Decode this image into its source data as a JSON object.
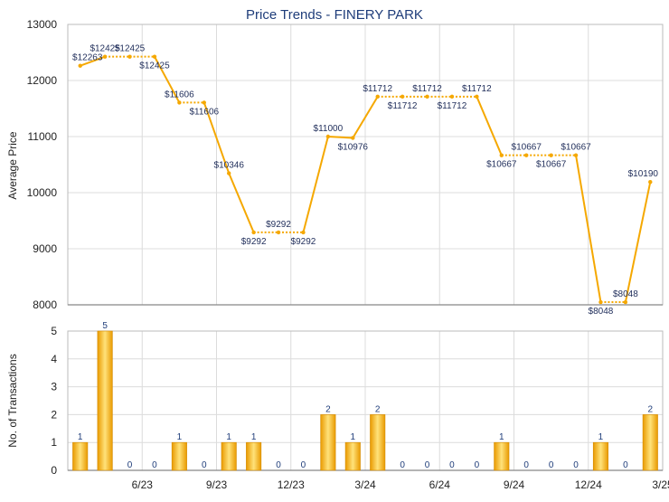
{
  "chart_data": [
    {
      "type": "line",
      "title": "Price Trends - FINERY PARK",
      "xlabel": "",
      "ylabel": "Average Price",
      "ylim": [
        8000,
        13000
      ],
      "yticks": [
        "8000",
        "9000",
        "10000",
        "11000",
        "12000",
        "13000"
      ],
      "grid": true,
      "color": "#f5a800",
      "points": [
        {
          "label": "$12263",
          "y": 12263
        },
        {
          "label": "$12425",
          "y": 12425
        },
        {
          "label": "$12425",
          "y": 12425
        },
        {
          "label": "$12425",
          "y": 12425
        },
        {
          "label": "$11606",
          "y": 11606
        },
        {
          "label": "$11606",
          "y": 11606
        },
        {
          "label": "$10346",
          "y": 10346
        },
        {
          "label": "$9292",
          "y": 9292
        },
        {
          "label": "$9292",
          "y": 9292
        },
        {
          "label": "$9292",
          "y": 9292
        },
        {
          "label": "$11000",
          "y": 11000
        },
        {
          "label": "$10976",
          "y": 10976
        },
        {
          "label": "$11712",
          "y": 11712
        },
        {
          "label": "$11712",
          "y": 11712
        },
        {
          "label": "$11712",
          "y": 11712
        },
        {
          "label": "$11712",
          "y": 11712
        },
        {
          "label": "$11712",
          "y": 11712
        },
        {
          "label": "$10667",
          "y": 10667
        },
        {
          "label": "$10667",
          "y": 10667
        },
        {
          "label": "$10667",
          "y": 10667
        },
        {
          "label": "$10667",
          "y": 10667
        },
        {
          "label": "$8048",
          "y": 8048
        },
        {
          "label": "$8048",
          "y": 8048
        },
        {
          "label": "$10190",
          "y": 10190
        }
      ]
    },
    {
      "type": "bar",
      "xlabel": "",
      "ylabel": "No. of Transactions",
      "ylim": [
        0,
        5
      ],
      "yticks": [
        "0",
        "1",
        "2",
        "3",
        "4",
        "5"
      ],
      "grid": true,
      "color": "#f5a800",
      "x_ticks": [
        "6/23",
        "9/23",
        "12/23",
        "3/24",
        "6/24",
        "9/24",
        "12/24",
        "3/25"
      ],
      "values": [
        1,
        5,
        0,
        0,
        1,
        0,
        1,
        1,
        0,
        0,
        2,
        1,
        2,
        0,
        0,
        0,
        0,
        1,
        0,
        0,
        0,
        1,
        0,
        2
      ]
    }
  ]
}
